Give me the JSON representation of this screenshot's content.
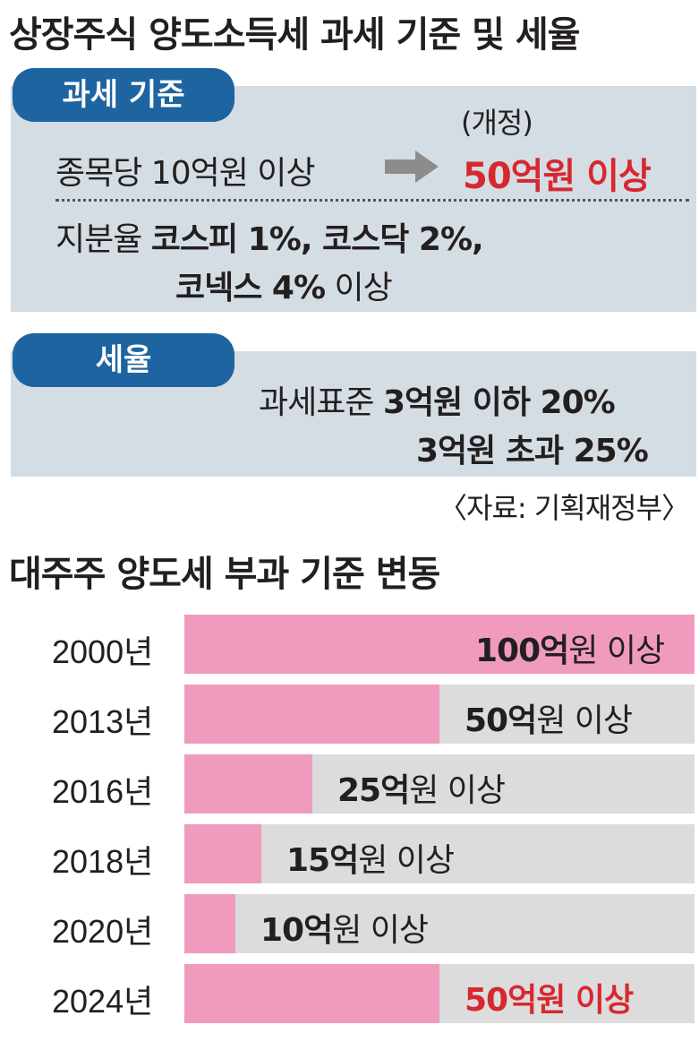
{
  "top": {
    "title": "상장주식 양도소득세 과세 기준 및 세율",
    "criteria": {
      "badge": "과세 기준",
      "revised_label": "(개정)",
      "row1_label": "종목당 10억원 이상",
      "row1_new": "50억원 이상",
      "row2_prefix": "지분율 ",
      "row2_bold": "코스피 1%, 코스닥 2%,",
      "row3_bold": "코넥스 4%",
      "row3_rest": " 이상"
    },
    "rate": {
      "badge": "세율",
      "line1_prefix": "과세표준 ",
      "line1_bold": "3억원 이하 20%",
      "line2_bold": "3억원 초과 25%"
    },
    "source": "〈자료: 기획재정부〉"
  },
  "colors": {
    "bar_pink": "#f09bbe",
    "bar_track": "#dcdcdc",
    "panel": "#d5dde4",
    "badge": "#1e64a0",
    "highlight_red": "#d7282f"
  },
  "chart_data": {
    "type": "bar",
    "title": "대주주 양도세 부과 기준 변동",
    "unit": "억원",
    "categories": [
      "2000년",
      "2013년",
      "2016년",
      "2018년",
      "2020년",
      "2024년"
    ],
    "values": [
      100,
      50,
      25,
      15,
      10,
      50
    ],
    "labels": [
      {
        "num": "100억",
        "rest": "원 이상"
      },
      {
        "num": "50억",
        "rest": "원 이상"
      },
      {
        "num": "25억",
        "rest": "원 이상"
      },
      {
        "num": "15억",
        "rest": "원 이상"
      },
      {
        "num": "10억",
        "rest": "원 이상"
      },
      {
        "num": "50억",
        "rest": "원 이상"
      }
    ],
    "highlight_index": 5
  }
}
